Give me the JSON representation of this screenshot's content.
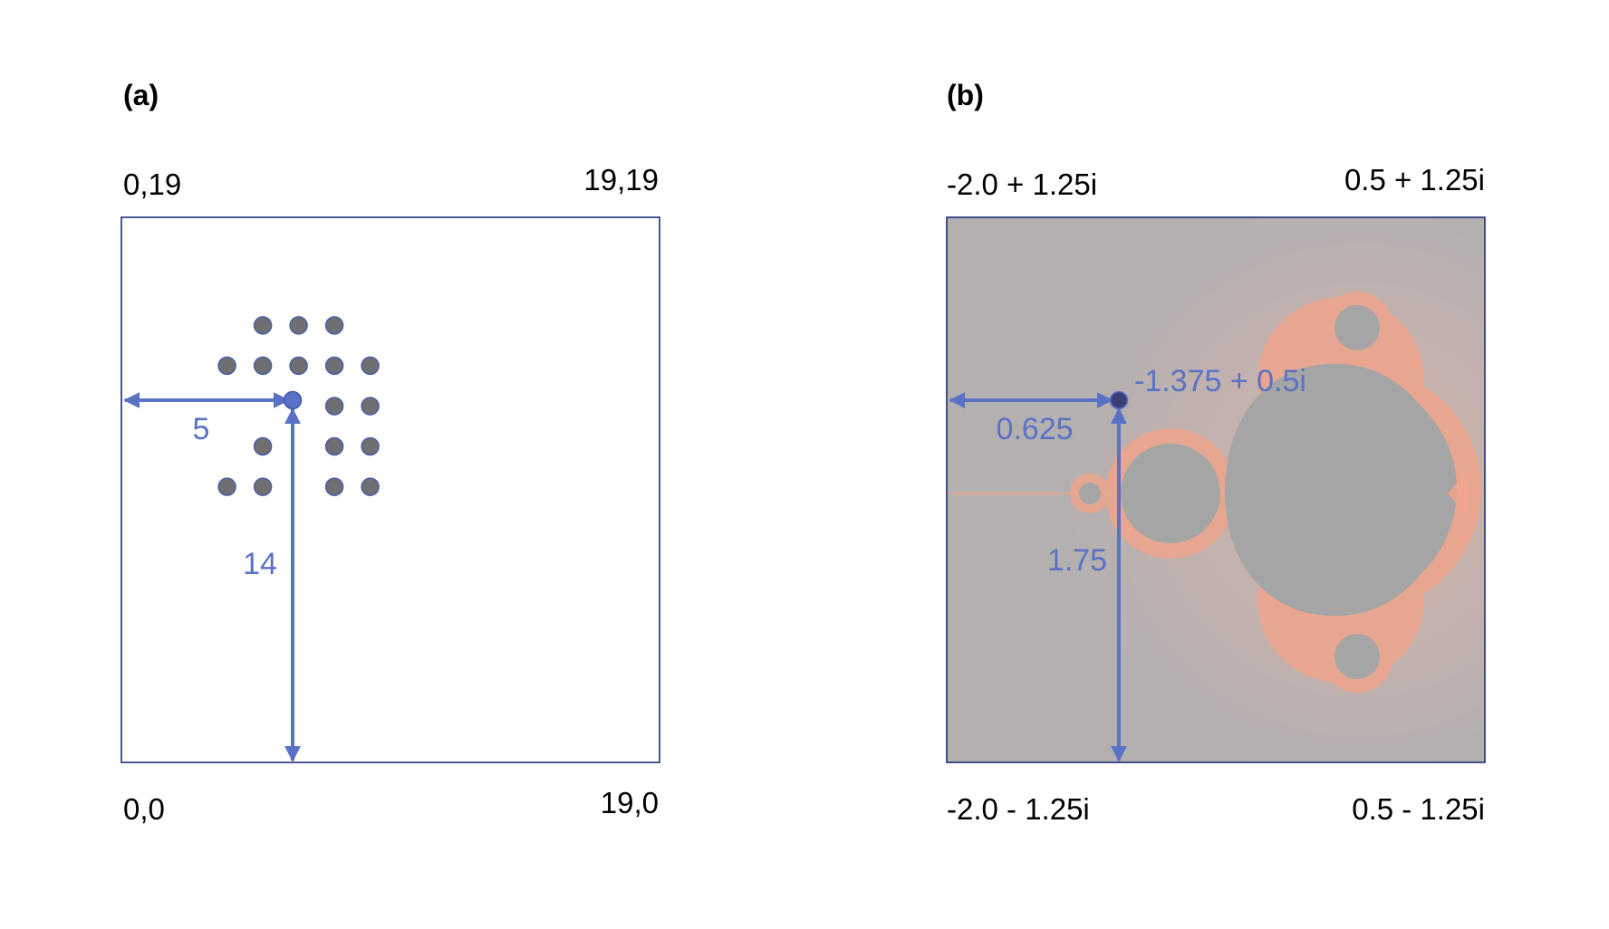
{
  "panel_a": {
    "label": "(a)",
    "corners": {
      "top_left": "0,19",
      "top_right": "19,19",
      "bottom_left": "0,0",
      "bottom_right": "19,0"
    },
    "grid_size": 20,
    "dot_rows": [
      {
        "y": 16,
        "xs": [
          4,
          5,
          6
        ]
      },
      {
        "y": 14.5,
        "xs": [
          3,
          4,
          5,
          6,
          7
        ]
      },
      {
        "y": 13,
        "xs": [
          6,
          7
        ]
      },
      {
        "y": 11.5,
        "xs": [
          4,
          6,
          7
        ]
      },
      {
        "y": 10,
        "xs": [
          3,
          4,
          6,
          7
        ]
      }
    ],
    "highlighted_point": {
      "x": 5,
      "y": 14
    },
    "x_distance_label": "5",
    "y_distance_label": "14"
  },
  "panel_b": {
    "label": "(b)",
    "corners": {
      "top_left": "-2.0 + 1.25i",
      "top_right": "0.5 + 1.25i",
      "bottom_left": "-2.0 - 1.25i",
      "bottom_right": "0.5 - 1.25i"
    },
    "re_range": [
      -2.0,
      0.5
    ],
    "im_range": [
      -1.25,
      1.25
    ],
    "highlighted_point": {
      "re": -1.375,
      "im": 0.5
    },
    "point_label": "-1.375 + 0.5i",
    "re_distance_label": "0.625",
    "im_distance_label": "1.75"
  },
  "colors": {
    "accent": "#5a72c6",
    "dot_fill": "#6f6f72",
    "dot_stroke": "#4a5ea8",
    "box_stroke": "#1f2f7a",
    "set_fill": "#a5a5a5",
    "background_gray": "#b4b0b0",
    "fractal_edge": "#f2a184"
  }
}
